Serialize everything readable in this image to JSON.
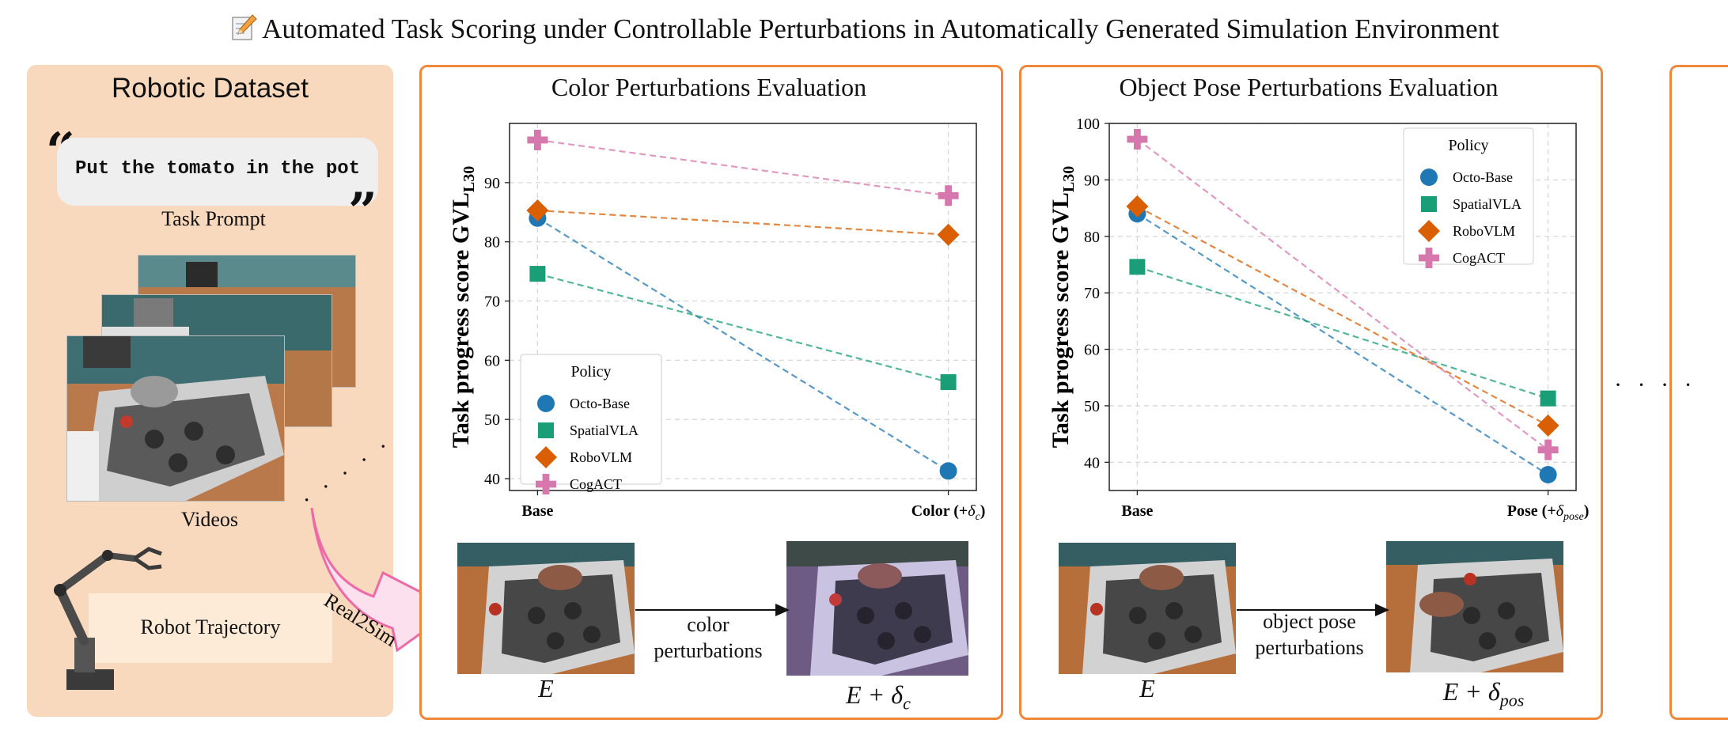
{
  "title": "Automated Task Scoring under Controllable Perturbations in Automatically Generated Simulation Environment",
  "dataset": {
    "heading": "Robotic Dataset",
    "prompt_text": "Put the tomato in the pot",
    "prompt_label": "Task Prompt",
    "videos_label": "Videos",
    "trajectory_label": "Robot Trajectory",
    "real2sim_label": "Real2Sim"
  },
  "panels": {
    "color": {
      "title": "Color Perturbations Evaluation",
      "caption_before": "E",
      "caption_after": "E + δ",
      "caption_after_sub": "c",
      "arrow_label_1": "color",
      "arrow_label_2": "perturbations"
    },
    "pose": {
      "title": "Object Pose Perturbations Evaluation",
      "caption_before": "E",
      "caption_after": "E + δ",
      "caption_after_sub": "pos",
      "arrow_label_1": "object pose",
      "arrow_label_2": "perturbations"
    }
  },
  "ellipsis": "· · · ·",
  "chart_data": [
    {
      "type": "line",
      "title": "",
      "ylabel": "Task progress score GVL",
      "ylabel_sub": "L30",
      "categories": [
        "Base",
        "Color (+δc)"
      ],
      "category_labels": [
        {
          "text": "Base"
        },
        {
          "text": "Color (+",
          "math": "δ",
          "sub": "c",
          "close": ")"
        }
      ],
      "ylim": [
        38,
        100
      ],
      "yticks": [
        40,
        50,
        60,
        70,
        80,
        90
      ],
      "grid": true,
      "legend_title": "Policy",
      "legend_position": "bottom-left",
      "series": [
        {
          "name": "Octo-Base",
          "values": [
            84.0,
            41.3
          ],
          "color": "#1f77b4",
          "marker": "circle"
        },
        {
          "name": "SpatialVLA",
          "values": [
            74.6,
            56.3
          ],
          "color": "#1a9e77",
          "marker": "square"
        },
        {
          "name": "RoboVLM",
          "values": [
            85.3,
            81.2
          ],
          "color": "#d95f02",
          "marker": "diamond"
        },
        {
          "name": "CogACT",
          "values": [
            97.2,
            87.8
          ],
          "color": "#d678ad",
          "marker": "plus"
        }
      ]
    },
    {
      "type": "line",
      "title": "",
      "ylabel": "Task progress score GVL",
      "ylabel_sub": "L30",
      "categories": [
        "Base",
        "Pose (+δpose)"
      ],
      "category_labels": [
        {
          "text": "Base"
        },
        {
          "text": "Pose (+",
          "math": "δ",
          "sub": "pose",
          "close": ")"
        }
      ],
      "ylim": [
        35,
        100
      ],
      "yticks": [
        40,
        50,
        60,
        70,
        80,
        90,
        100
      ],
      "grid": true,
      "legend_title": "Policy",
      "legend_position": "top-right",
      "series": [
        {
          "name": "Octo-Base",
          "values": [
            84.0,
            37.8
          ],
          "color": "#1f77b4",
          "marker": "circle"
        },
        {
          "name": "SpatialVLA",
          "values": [
            74.6,
            51.3
          ],
          "color": "#1a9e77",
          "marker": "square"
        },
        {
          "name": "RoboVLM",
          "values": [
            85.3,
            46.5
          ],
          "color": "#d95f02",
          "marker": "diamond"
        },
        {
          "name": "CogACT",
          "values": [
            97.2,
            42.2
          ],
          "color": "#d678ad",
          "marker": "plus"
        }
      ]
    }
  ]
}
